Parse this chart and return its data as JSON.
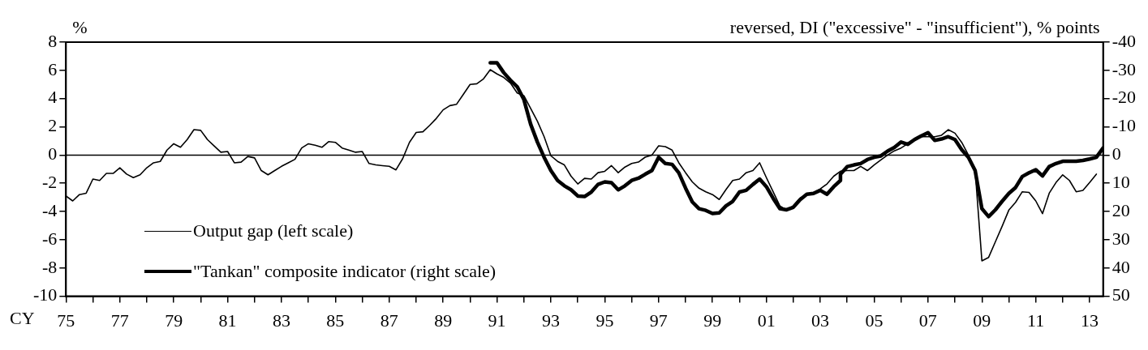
{
  "chart_data": {
    "type": "line",
    "ylabel": "%",
    "y2label": "reversed, DI (\"excessive\" - \"insufficient\"), % points",
    "xlabel": "CY",
    "xlim": [
      1975,
      2013.5
    ],
    "xticks": [
      {
        "value": 1975,
        "label": "75"
      },
      {
        "value": 1976,
        "label": null
      },
      {
        "value": 1977,
        "label": "77"
      },
      {
        "value": 1978,
        "label": null
      },
      {
        "value": 1979,
        "label": "79"
      },
      {
        "value": 1980,
        "label": null
      },
      {
        "value": 1981,
        "label": "81"
      },
      {
        "value": 1982,
        "label": null
      },
      {
        "value": 1983,
        "label": "83"
      },
      {
        "value": 1984,
        "label": null
      },
      {
        "value": 1985,
        "label": "85"
      },
      {
        "value": 1986,
        "label": null
      },
      {
        "value": 1987,
        "label": "87"
      },
      {
        "value": 1988,
        "label": null
      },
      {
        "value": 1989,
        "label": "89"
      },
      {
        "value": 1990,
        "label": null
      },
      {
        "value": 1991,
        "label": "91"
      },
      {
        "value": 1992,
        "label": null
      },
      {
        "value": 1993,
        "label": "93"
      },
      {
        "value": 1994,
        "label": null
      },
      {
        "value": 1995,
        "label": "95"
      },
      {
        "value": 1996,
        "label": null
      },
      {
        "value": 1997,
        "label": "97"
      },
      {
        "value": 1998,
        "label": null
      },
      {
        "value": 1999,
        "label": "99"
      },
      {
        "value": 2000,
        "label": null
      },
      {
        "value": 2001,
        "label": "01"
      },
      {
        "value": 2002,
        "label": null
      },
      {
        "value": 2003,
        "label": "03"
      },
      {
        "value": 2004,
        "label": null
      },
      {
        "value": 2005,
        "label": "05"
      },
      {
        "value": 2006,
        "label": null
      },
      {
        "value": 2007,
        "label": "07"
      },
      {
        "value": 2008,
        "label": null
      },
      {
        "value": 2009,
        "label": "09"
      },
      {
        "value": 2010,
        "label": null
      },
      {
        "value": 2011,
        "label": "11"
      },
      {
        "value": 2012,
        "label": null
      },
      {
        "value": 2013,
        "label": "13"
      }
    ],
    "ylim": [
      -10,
      8
    ],
    "yticks": [
      -10,
      -8,
      -6,
      -4,
      -2,
      0,
      2,
      4,
      6,
      8
    ],
    "y2lim": [
      50,
      -40
    ],
    "y2ticks": [
      50,
      40,
      30,
      20,
      10,
      0,
      -10,
      -20,
      -30,
      -40
    ],
    "ref_lines": [
      {
        "axis": "y",
        "value": 0,
        "color": "#000000"
      }
    ],
    "grid": false,
    "legend": "bottom left",
    "marker": "none",
    "line_style": "solid",
    "series": [
      {
        "name": "Output gap (left scale)",
        "color": "#000000",
        "axis": "y",
        "x": [
          1975,
          1975.25,
          1975.5,
          1975.75,
          1976,
          1976.25,
          1976.5,
          1976.75,
          1977,
          1977.25,
          1977.5,
          1977.75,
          1978,
          1978.25,
          1978.5,
          1978.75,
          1979,
          1979.25,
          1979.5,
          1979.75,
          1980,
          1980.25,
          1980.5,
          1980.75,
          1981,
          1981.25,
          1981.5,
          1981.75,
          1982,
          1982.25,
          1982.5,
          1982.75,
          1983,
          1983.25,
          1983.5,
          1983.75,
          1984,
          1984.25,
          1984.5,
          1984.75,
          1985,
          1985.25,
          1985.5,
          1985.75,
          1986,
          1986.25,
          1986.5,
          1986.75,
          1987,
          1987.25,
          1987.5,
          1987.75,
          1988,
          1988.25,
          1988.5,
          1988.75,
          1989,
          1989.25,
          1989.5,
          1989.75,
          1990,
          1990.25,
          1990.5,
          1990.75,
          1991,
          1991.25,
          1991.5,
          1991.75,
          1992,
          1992.25,
          1992.5,
          1992.75,
          1993,
          1993.25,
          1993.5,
          1993.75,
          1994,
          1994.25,
          1994.5,
          1994.75,
          1995,
          1995.25,
          1995.5,
          1995.75,
          1996,
          1996.25,
          1996.5,
          1996.75,
          1997,
          1997.25,
          1997.5,
          1997.75,
          1998,
          1998.25,
          1998.5,
          1998.75,
          1999,
          1999.25,
          1999.5,
          1999.75,
          2000,
          2000.25,
          2000.5,
          2000.75,
          2001,
          2001.25,
          2001.5,
          2001.75,
          2002,
          2002.25,
          2002.5,
          2002.75,
          2003,
          2003.25,
          2003.5,
          2003.75,
          2004,
          2004.25,
          2004.5,
          2004.75,
          2005,
          2005.25,
          2005.5,
          2005.75,
          2006,
          2006.25,
          2006.5,
          2006.75,
          2007,
          2007.25,
          2007.5,
          2007.75,
          2008,
          2008.25,
          2008.5,
          2008.75,
          2009,
          2009.25,
          2009.5,
          2009.75,
          2010,
          2010.25,
          2010.5,
          2010.75,
          2011,
          2011.25,
          2011.5,
          2011.75,
          2012,
          2012.25,
          2012.5,
          2012.75,
          2013,
          2013.25
        ],
        "values": [
          -2.9,
          -3.25,
          -2.8,
          -2.7,
          -1.7,
          -1.8,
          -1.3,
          -1.3,
          -0.9,
          -1.35,
          -1.6,
          -1.4,
          -0.9,
          -0.55,
          -0.45,
          0.35,
          0.8,
          0.55,
          1.1,
          1.8,
          1.75,
          1.1,
          0.65,
          0.2,
          0.25,
          -0.55,
          -0.5,
          -0.1,
          -0.2,
          -1.1,
          -1.4,
          -1.1,
          -0.8,
          -0.55,
          -0.3,
          0.5,
          0.8,
          0.7,
          0.55,
          0.95,
          0.9,
          0.5,
          0.35,
          0.2,
          0.25,
          -0.6,
          -0.7,
          -0.75,
          -0.8,
          -1.05,
          -0.25,
          0.9,
          1.6,
          1.65,
          2.1,
          2.6,
          3.2,
          3.5,
          3.6,
          4.3,
          5.0,
          5.05,
          5.4,
          6.05,
          5.75,
          5.5,
          5.1,
          4.4,
          4.2,
          3.3,
          2.4,
          1.3,
          -0.05,
          -0.45,
          -0.7,
          -1.5,
          -2.05,
          -1.65,
          -1.7,
          -1.25,
          -1.15,
          -0.75,
          -1.25,
          -0.85,
          -0.6,
          -0.5,
          -0.15,
          0,
          0.65,
          0.6,
          0.35,
          -0.55,
          -1.25,
          -1.9,
          -2.35,
          -2.6,
          -2.8,
          -3.15,
          -2.45,
          -1.8,
          -1.7,
          -1.25,
          -1.1,
          -0.55,
          -1.6,
          -2.6,
          -3.6,
          -3.9,
          -3.6,
          -3.05,
          -2.8,
          -2.65,
          -2.4,
          -2.05,
          -1.5,
          -1.15,
          -1.1,
          -1.1,
          -0.8,
          -1.1,
          -0.7,
          -0.35,
          0,
          0.3,
          0.5,
          0.8,
          1.1,
          1.3,
          1.3,
          1.3,
          1.4,
          1.8,
          1.55,
          0.9,
          0,
          -1.1,
          -7.5,
          -7.25,
          -6.15,
          -5.05,
          -3.9,
          -3.35,
          -2.6,
          -2.65,
          -3.25,
          -4.15,
          -2.7,
          -1.95,
          -1.4,
          -1.8,
          -2.6,
          -2.5,
          -1.95,
          -1.35
        ]
      },
      {
        "name": "\"Tankan\" composite indicator (right scale)",
        "color": "#000000",
        "axis": "y2",
        "x": [
          1990.75,
          1991,
          1991.25,
          1991.5,
          1991.75,
          1992,
          1992.25,
          1992.5,
          1992.75,
          1993,
          1993.25,
          1993.5,
          1993.75,
          1994,
          1994.25,
          1994.5,
          1994.75,
          1995,
          1995.25,
          1995.5,
          1995.75,
          1996,
          1996.25,
          1996.5,
          1996.75,
          1997,
          1997.25,
          1997.5,
          1997.75,
          1998,
          1998.25,
          1998.5,
          1998.75,
          1999,
          1999.25,
          1999.5,
          1999.75,
          2000,
          2000.25,
          2000.5,
          2000.75,
          2001,
          2001.25,
          2001.5,
          2001.75,
          2002,
          2002.25,
          2002.5,
          2002.75,
          2003,
          2003.25,
          2003.5,
          2003.75,
          2003.75,
          2004,
          2004.25,
          2004.5,
          2004.75,
          2005,
          2005.25,
          2005.5,
          2005.75,
          2006,
          2006.25,
          2006.5,
          2006.75,
          2007,
          2007.25,
          2007.5,
          2007.75,
          2008,
          2008.25,
          2008.5,
          2008.75,
          2009,
          2009.25,
          2009.5,
          2009.75,
          2010,
          2010.25,
          2010.5,
          2010.75,
          2011,
          2011.25,
          2011.5,
          2011.75,
          2012,
          2012.25,
          2012.5,
          2012.75,
          2013,
          2013.25,
          2013.5
        ],
        "values": [
          -32.7,
          -32.7,
          -29.2,
          -26.5,
          -24.2,
          -19.6,
          -10.9,
          -4.6,
          0.8,
          5.5,
          9,
          10.9,
          12.3,
          14.5,
          14.7,
          13.1,
          10.4,
          9.5,
          9.8,
          12.3,
          10.9,
          9,
          8.2,
          6.8,
          5.5,
          0.8,
          3,
          3.3,
          6.3,
          11.7,
          16.6,
          19,
          19.6,
          20.7,
          20.5,
          18,
          16.4,
          13.1,
          12.5,
          10.4,
          8.5,
          11.2,
          15.3,
          19,
          19.4,
          18.5,
          15.8,
          13.9,
          13.6,
          12.5,
          13.9,
          11.2,
          9,
          6.8,
          4.1,
          3.5,
          3,
          1.6,
          0.8,
          0.3,
          -1.4,
          -2.7,
          -4.6,
          -3.8,
          -5.5,
          -6.8,
          -7.9,
          -5.2,
          -5.7,
          -6.5,
          -5.5,
          -1.9,
          0.8,
          5.5,
          19,
          21.8,
          19.4,
          16.4,
          13.6,
          11.5,
          7.6,
          6.3,
          5.2,
          7.4,
          4.1,
          3,
          2.2,
          2.2,
          2.2,
          1.9,
          1.4,
          0.8,
          -2.5
        ]
      }
    ]
  }
}
